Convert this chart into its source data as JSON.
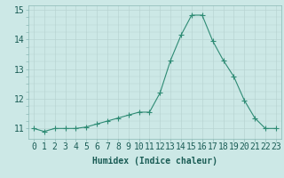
{
  "x": [
    0,
    1,
    2,
    3,
    4,
    5,
    6,
    7,
    8,
    9,
    10,
    11,
    12,
    13,
    14,
    15,
    16,
    17,
    18,
    19,
    20,
    21,
    22,
    23
  ],
  "y": [
    11.0,
    10.9,
    11.0,
    11.0,
    11.0,
    11.05,
    11.15,
    11.25,
    11.35,
    11.45,
    11.55,
    11.55,
    12.2,
    13.3,
    14.15,
    14.82,
    14.82,
    13.95,
    13.3,
    12.75,
    11.95,
    11.35,
    11.0,
    11.0
  ],
  "line_color": "#2e8b74",
  "marker": "+",
  "marker_size": 5,
  "bg_color": "#cce8e6",
  "grid_color_major": "#b8d4d2",
  "grid_color_minor": "#d4e8e6",
  "xlabel": "Humidex (Indice chaleur)",
  "xlabel_fontsize": 7,
  "tick_fontsize": 7,
  "ylim": [
    10.65,
    15.15
  ],
  "yticks": [
    11,
    12,
    13,
    14,
    15
  ],
  "xticks": [
    0,
    1,
    2,
    3,
    4,
    5,
    6,
    7,
    8,
    9,
    10,
    11,
    12,
    13,
    14,
    15,
    16,
    17,
    18,
    19,
    20,
    21,
    22,
    23
  ]
}
